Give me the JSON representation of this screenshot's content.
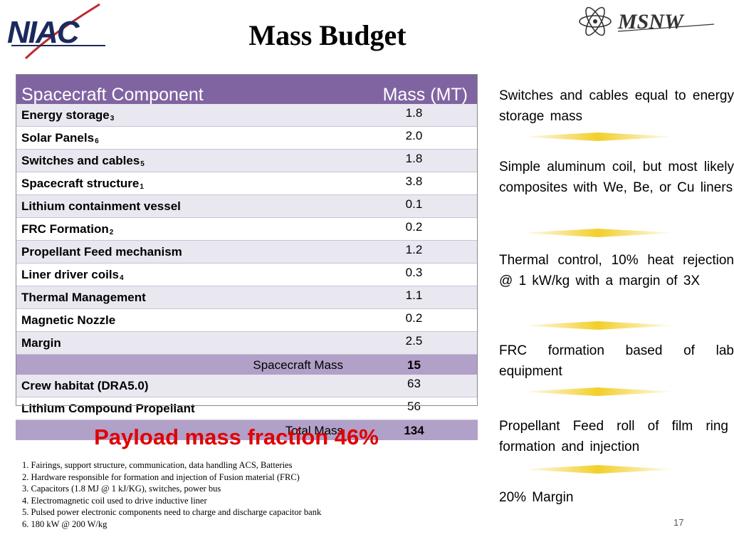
{
  "header": {
    "title": "Mass Budget",
    "left_logo_text": "NIAC",
    "right_logo_text": "MSNW"
  },
  "table": {
    "col_component": "Spacecraft Component",
    "col_mass": "Mass (MT)",
    "rows": [
      {
        "name": "Energy storage",
        "ref": "3",
        "mass": "1.8"
      },
      {
        "name": "Solar Panels",
        "ref": "6",
        "mass": "2.0"
      },
      {
        "name": "Switches and cables",
        "ref": "5",
        "mass": "1.8"
      },
      {
        "name": "Spacecraft structure",
        "ref": "1",
        "mass": "3.8"
      },
      {
        "name": "Lithium containment vessel",
        "ref": "",
        "mass": "0.1"
      },
      {
        "name": "FRC Formation",
        "ref": "2",
        "mass": "0.2"
      },
      {
        "name": "Propellant Feed mechanism",
        "ref": "",
        "mass": "1.2"
      },
      {
        "name": "Liner driver coils",
        "ref": "4",
        "mass": "0.3"
      },
      {
        "name": "Thermal Management",
        "ref": "",
        "mass": "1.1"
      },
      {
        "name": "Magnetic Nozzle",
        "ref": "",
        "mass": "0.2"
      },
      {
        "name": "Margin",
        "ref": "",
        "mass": "2.5"
      }
    ],
    "spacecraft_mass_label": "Spacecraft Mass",
    "spacecraft_mass_value": "15",
    "extra_rows": [
      {
        "name": "Crew habitat (DRA5.0)",
        "mass": "63"
      },
      {
        "name": "Lithium Compound Propellant",
        "mass": "56"
      }
    ],
    "total_label": "Total Mass",
    "total_value": "134"
  },
  "payload_text": "Payload mass fraction 46%",
  "footnotes": [
    "1. Fairings, support structure, communication, data handling ACS, Batteries",
    "2. Hardware responsible for formation and injection of Fusion material (FRC)",
    "3. Capacitors (1.8 MJ @ 1 kJ/KG), switches, power bus",
    "4. Electromagnetic coil used to drive inductive liner",
    "5. Pulsed power electronic components need to charge and discharge capacitor bank",
    "6. 180 kW @ 200 W/kg"
  ],
  "side_notes": [
    "Switches and cables equal to energy storage mass",
    "Simple aluminum coil, but most likely composites with We, Be, or Cu liners",
    "Thermal control, 10% heat rejection @ 1 kW/kg with a margin of 3X",
    "FRC formation based of lab equipment",
    "Propellant Feed roll of film ring formation and injection",
    "20% Margin"
  ],
  "page_number": "17",
  "colors": {
    "header_purple": "#8064a2",
    "summary_purple": "#b1a0c7",
    "row_alt": "#e9e7f0",
    "payload_red": "#e00000",
    "bar_yellow": "#f2cf2a"
  }
}
